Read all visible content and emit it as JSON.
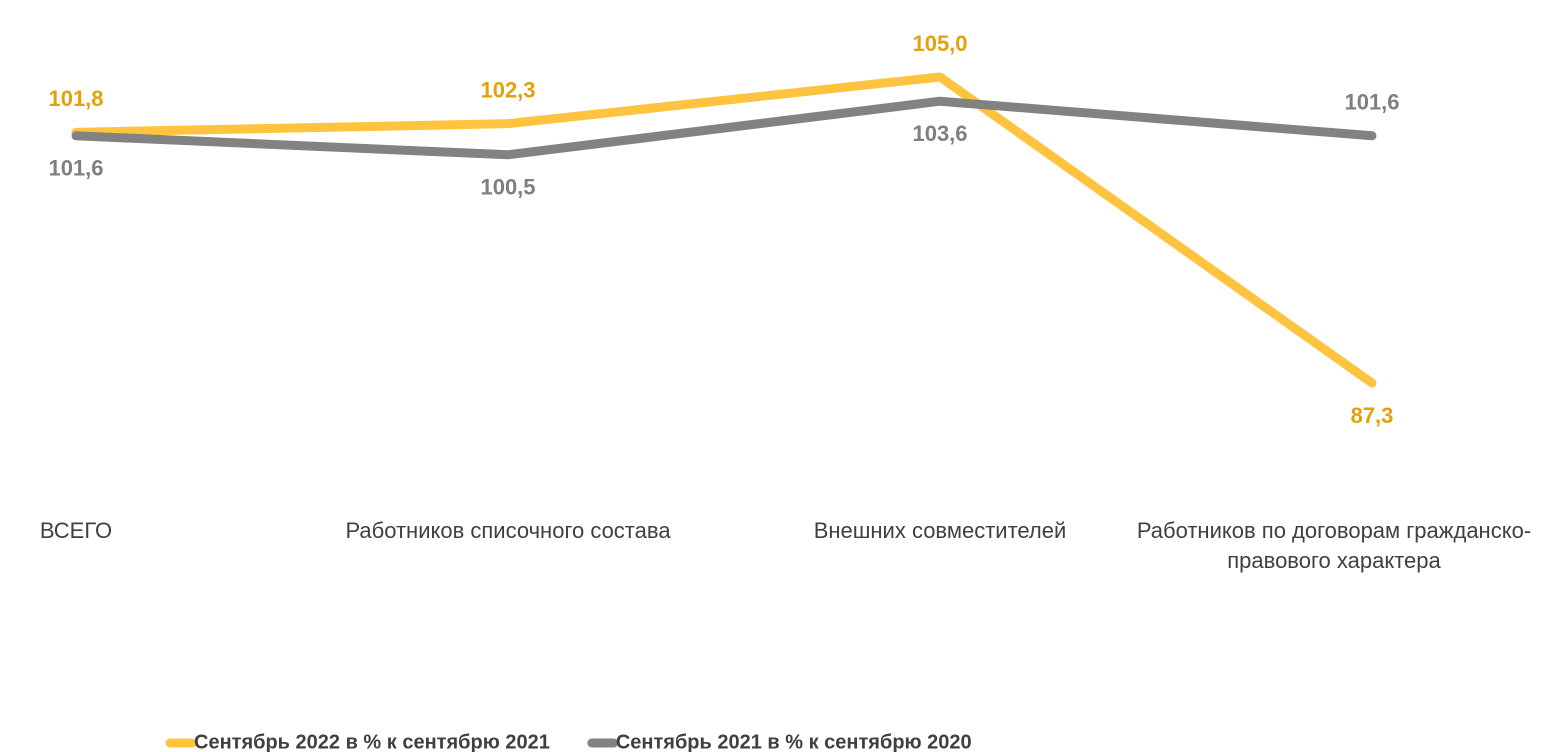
{
  "chart_data": {
    "type": "line",
    "categories": [
      "ВСЕГО",
      "Работников списочного состава",
      "Внешних совместителей",
      "Работников по договорам гражданско-правового характера"
    ],
    "series": [
      {
        "name": "Сентябрь 2022 в % к сентябрю 2021",
        "color": "#FFC43F",
        "label_color": "#E3A10B",
        "values": [
          101.8,
          102.3,
          105.0,
          87.3
        ],
        "value_labels": [
          "101,8",
          "102,3",
          "105,0",
          "87,3"
        ]
      },
      {
        "name": "Сентябрь 2021 в % к сентябрю 2020",
        "color": "#828282",
        "label_color": "#7F7F7F",
        "values": [
          101.6,
          100.5,
          103.6,
          101.6
        ],
        "value_labels": [
          "101,6",
          "100,5",
          "103,6",
          "101,6"
        ]
      }
    ],
    "grid": false,
    "legend": "bottom"
  }
}
